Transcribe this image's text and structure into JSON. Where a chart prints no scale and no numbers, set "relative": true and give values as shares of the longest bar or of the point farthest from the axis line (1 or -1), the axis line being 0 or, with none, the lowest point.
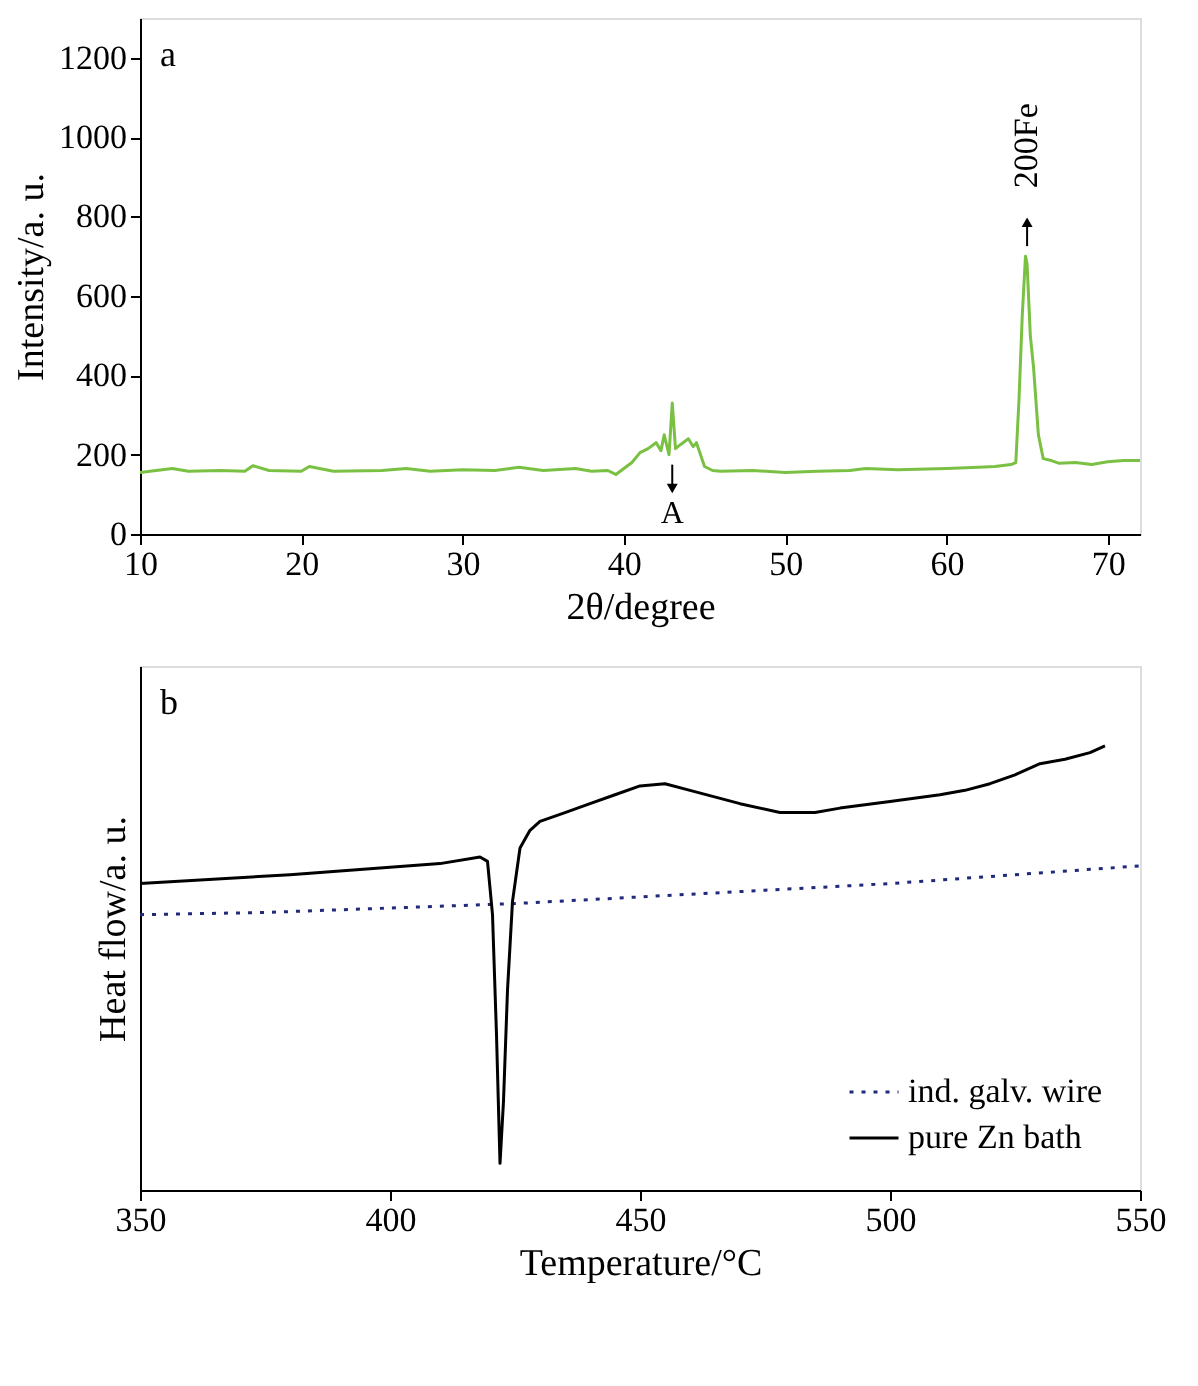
{
  "chart_data": [
    {
      "type": "line",
      "xlabel": "2θ/degree",
      "ylabel": "Intensity/a. u.",
      "xlim": [
        10,
        72
      ],
      "xticks": [
        10,
        20,
        30,
        40,
        50,
        60,
        70
      ],
      "ylim": [
        0,
        1300
      ],
      "yticks": [
        0,
        200,
        400,
        600,
        800,
        1000,
        1200
      ],
      "grid": false,
      "legend": false,
      "marker": "none",
      "line_style": "solid",
      "series": [
        {
          "color": "#7ac143",
          "x": [
            10,
            11,
            12,
            13,
            15,
            16.5,
            17,
            18,
            20,
            20.5,
            22,
            25,
            26.5,
            28,
            30,
            32,
            33.5,
            35,
            37,
            38,
            39,
            39.5,
            40,
            40.5,
            41,
            41.5,
            42,
            42.3,
            42.5,
            42.8,
            43,
            43.2,
            43.5,
            44,
            44.3,
            44.5,
            45,
            45.5,
            46,
            48,
            50,
            52,
            54,
            55,
            57,
            60,
            62,
            63,
            64,
            64.3,
            64.5,
            64.7,
            64.9,
            65,
            65.2,
            65.4,
            65.7,
            66,
            66.5,
            67,
            68,
            69,
            70,
            71,
            72
          ],
          "values": [
            155,
            160,
            165,
            158,
            160,
            158,
            172,
            160,
            158,
            170,
            158,
            160,
            165,
            158,
            162,
            160,
            168,
            160,
            165,
            158,
            160,
            150,
            165,
            180,
            205,
            215,
            230,
            210,
            250,
            200,
            330,
            215,
            225,
            240,
            220,
            230,
            170,
            160,
            158,
            160,
            155,
            158,
            160,
            165,
            162,
            165,
            168,
            170,
            175,
            180,
            340,
            550,
            700,
            680,
            500,
            420,
            250,
            190,
            185,
            178,
            180,
            175,
            182,
            185,
            185
          ]
        }
      ],
      "annotations": [
        "a",
        {
          "text": "A",
          "x": 43,
          "y": 200
        },
        {
          "text": "200Fe",
          "x": 65,
          "y": 700
        }
      ]
    },
    {
      "type": "line",
      "xlabel": "Temperature/°C",
      "ylabel": "Heat flow/a. u.",
      "xlim": [
        350,
        550
      ],
      "xticks": [
        350,
        400,
        450,
        500,
        550
      ],
      "relative": true,
      "grid": false,
      "legend": "bottom right",
      "marker": "none",
      "series": [
        {
          "name": "ind. galv. wire",
          "color": "#1f2a7a",
          "line_style": "dotted",
          "x": [
            350,
            375,
            400,
            425,
            450,
            475,
            500,
            525,
            550
          ],
          "values": [
            0.62,
            0.625,
            0.635,
            0.645,
            0.66,
            0.675,
            0.69,
            0.71,
            0.73
          ]
        },
        {
          "name": "pure Zn bath",
          "color": "#000000",
          "line_style": "solid",
          "x": [
            350,
            380,
            410,
            418,
            419.5,
            420.5,
            421.3,
            422,
            422.7,
            423.5,
            424.5,
            426,
            428,
            430,
            435,
            440,
            445,
            450,
            455,
            460,
            470,
            478,
            485,
            490,
            500,
            510,
            515,
            520,
            525,
            530,
            535,
            540,
            543
          ],
          "values": [
            0.69,
            0.71,
            0.735,
            0.75,
            0.74,
            0.62,
            0.35,
            0.06,
            0.2,
            0.45,
            0.65,
            0.77,
            0.81,
            0.83,
            0.85,
            0.87,
            0.89,
            0.91,
            0.915,
            0.9,
            0.87,
            0.85,
            0.85,
            0.86,
            0.875,
            0.89,
            0.9,
            0.915,
            0.935,
            0.96,
            0.97,
            0.985,
            1.0
          ]
        }
      ],
      "annotations": [
        "b"
      ]
    }
  ]
}
